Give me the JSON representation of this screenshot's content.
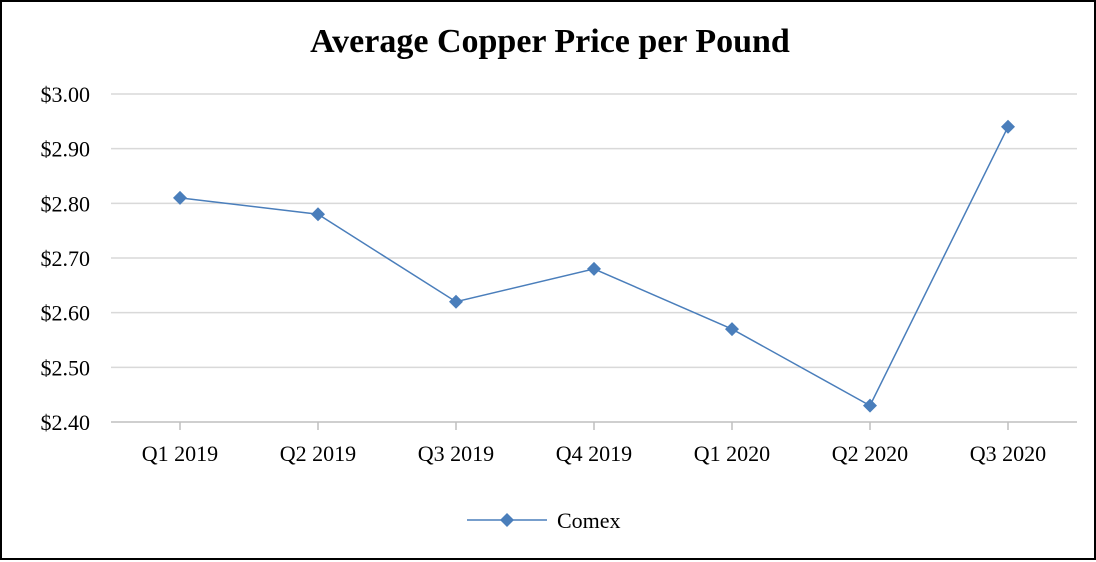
{
  "chart_data": {
    "type": "line",
    "title": "Average Copper Price per Pound",
    "xlabel": "",
    "ylabel": "",
    "categories": [
      "Q1 2019",
      "Q2 2019",
      "Q3 2019",
      "Q4 2019",
      "Q1 2020",
      "Q2 2020",
      "Q3 2020"
    ],
    "series": [
      {
        "name": "Comex",
        "color": "#4a7ebb",
        "marker": "diamond",
        "values": [
          2.81,
          2.78,
          2.62,
          2.68,
          2.57,
          2.43,
          2.94
        ]
      }
    ],
    "ylim": [
      2.4,
      3.0
    ],
    "yticks": [
      2.4,
      2.5,
      2.6,
      2.7,
      2.8,
      2.9,
      3.0
    ],
    "ytick_labels": [
      "$2.40",
      "$2.50",
      "$2.60",
      "$2.70",
      "$2.80",
      "$2.90",
      "$3.00"
    ],
    "grid": true,
    "legend_position": "bottom"
  }
}
